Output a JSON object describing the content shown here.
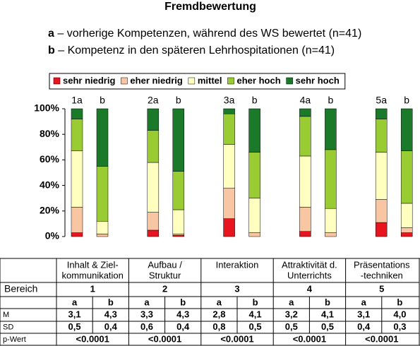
{
  "chart_data": {
    "type": "stacked_bar",
    "title": "Fremdbewertung",
    "notes": [
      {
        "key": "a",
        "text": "– vorherige Kompetenzen, während des WS bewertet (n=41)"
      },
      {
        "key": "b",
        "text": "– Kompetenz in den späteren Lehrhospitationen (n=41)"
      }
    ],
    "categories": [
      "1a",
      "b",
      "2a",
      "b",
      "3a",
      "b",
      "4a",
      "b",
      "5a",
      "b"
    ],
    "series": [
      {
        "name": "sehr niedrig",
        "color": "#e8141e",
        "values": [
          3,
          0,
          5,
          1,
          14,
          0,
          4,
          0,
          11,
          3
        ]
      },
      {
        "name": "eher niedrig",
        "color": "#f9c6a4",
        "values": [
          20,
          2,
          14,
          1,
          24,
          3,
          19,
          3,
          18,
          4
        ]
      },
      {
        "name": "mittel",
        "color": "#ffffc0",
        "values": [
          44,
          10,
          39,
          19,
          34,
          27,
          40,
          19,
          37,
          19
        ]
      },
      {
        "name": "eher hoch",
        "color": "#99cc33",
        "values": [
          25,
          43,
          25,
          30,
          24,
          36,
          31,
          46,
          26,
          41
        ]
      },
      {
        "name": "sehr hoch",
        "color": "#1a7a2a",
        "values": [
          8,
          45,
          17,
          49,
          4,
          34,
          6,
          32,
          8,
          33
        ]
      }
    ],
    "ylim": [
      0,
      100
    ],
    "yticks": [
      {
        "value": 0,
        "label": "0%"
      },
      {
        "value": 20,
        "label": "20%"
      },
      {
        "value": 40,
        "label": "40%"
      },
      {
        "value": 60,
        "label": "60%"
      },
      {
        "value": 80,
        "label": "80%"
      },
      {
        "value": 100,
        "label": "100%"
      }
    ],
    "legend_position": "top",
    "grid": false
  },
  "table": {
    "groups": [
      [
        "Inhalt & Ziel-",
        "kommunikation"
      ],
      [
        "Aufbau /",
        "Struktur"
      ],
      [
        "Interaktion"
      ],
      [
        "Attraktivität d.",
        "Unterrichts"
      ],
      [
        "Präsentations",
        "-techniken"
      ]
    ],
    "bereich_label": "Bereich",
    "bereich": [
      "1",
      "2",
      "3",
      "4",
      "5"
    ],
    "sub": [
      "a",
      "b",
      "a",
      "b",
      "a",
      "b",
      "a",
      "b",
      "a",
      "b"
    ],
    "rows": [
      {
        "label": "M",
        "cells": [
          "3,1",
          "4,3",
          "3,3",
          "4,3",
          "2,8",
          "4,1",
          "3,2",
          "4,1",
          "3,1",
          "4,0"
        ]
      },
      {
        "label": "SD",
        "cells": [
          "0,5",
          "0,4",
          "0,6",
          "0,4",
          "0,8",
          "0,5",
          "0,5",
          "0,5",
          "0,4",
          "0,3"
        ]
      }
    ],
    "p_label": "p-Wert",
    "p": [
      "<0.0001",
      "<0.0001",
      "<0.0001",
      "<0.0001",
      "<0.0001"
    ]
  }
}
